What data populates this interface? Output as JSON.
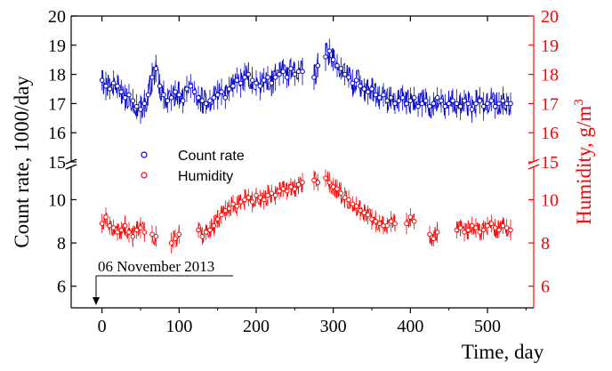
{
  "chart_data": {
    "type": "scatter",
    "x_axis": {
      "label": "Time, day",
      "range": [
        -40,
        560
      ],
      "ticks": [
        0,
        100,
        200,
        300,
        400,
        500
      ]
    },
    "y_left": {
      "label": "Count rate, 1000/day",
      "upper_segment": {
        "range": [
          15,
          20
        ],
        "ticks": [
          15,
          16,
          17,
          18,
          19,
          20
        ]
      },
      "lower_segment": {
        "range": [
          5,
          11.5
        ],
        "ticks": [
          6,
          8,
          10
        ]
      }
    },
    "y_right": {
      "label": "Humidity, g/m",
      "label_superscript": "3",
      "upper_segment": {
        "range": [
          15,
          20
        ],
        "ticks": [
          15,
          16,
          17,
          18,
          19,
          20
        ]
      },
      "lower_segment": {
        "range": [
          5,
          11.5
        ],
        "ticks": [
          6,
          8,
          10
        ]
      }
    },
    "legend": {
      "placement": "upper-left",
      "entries": [
        {
          "label": "Count rate",
          "color": "#0000cc"
        },
        {
          "label": "Humidity",
          "color": "#ff0000"
        }
      ]
    },
    "annotation": {
      "text": "06 November 2013",
      "x": 0
    },
    "series": [
      {
        "name": "Count rate",
        "color": "#0000cc",
        "axis_segment": "upper",
        "points": [
          [
            0,
            17.8
          ],
          [
            5,
            17.6
          ],
          [
            10,
            17.5
          ],
          [
            15,
            17.7
          ],
          [
            20,
            17.6
          ],
          [
            25,
            17.4
          ],
          [
            30,
            17.2
          ],
          [
            35,
            17.3
          ],
          [
            40,
            17.1
          ],
          [
            45,
            16.9
          ],
          [
            50,
            16.8
          ],
          [
            55,
            17.0
          ],
          [
            60,
            17.3
          ],
          [
            65,
            17.9
          ],
          [
            70,
            18.2
          ],
          [
            75,
            17.6
          ],
          [
            80,
            17.3
          ],
          [
            85,
            17.1
          ],
          [
            90,
            17.2
          ],
          [
            95,
            17.4
          ],
          [
            100,
            17.3
          ],
          [
            105,
            17.1
          ],
          [
            110,
            17.5
          ],
          [
            115,
            17.6
          ],
          [
            120,
            17.4
          ],
          [
            125,
            17.2
          ],
          [
            130,
            17.1
          ],
          [
            135,
            17.0
          ],
          [
            140,
            17.1
          ],
          [
            145,
            17.2
          ],
          [
            150,
            17.3
          ],
          [
            155,
            17.4
          ],
          [
            160,
            17.2
          ],
          [
            165,
            17.5
          ],
          [
            170,
            17.6
          ],
          [
            175,
            17.8
          ],
          [
            180,
            17.7
          ],
          [
            185,
            17.9
          ],
          [
            190,
            18.0
          ],
          [
            195,
            17.8
          ],
          [
            200,
            17.7
          ],
          [
            205,
            17.6
          ],
          [
            210,
            17.8
          ],
          [
            215,
            17.9
          ],
          [
            220,
            17.7
          ],
          [
            225,
            17.9
          ],
          [
            230,
            18.0
          ],
          [
            235,
            18.1
          ],
          [
            240,
            17.9
          ],
          [
            245,
            18.2
          ],
          [
            250,
            18.0
          ],
          [
            255,
            18.1
          ],
          [
            260,
            18.1
          ],
          [
            275,
            17.9
          ],
          [
            280,
            18.3
          ],
          [
            290,
            18.6
          ],
          [
            295,
            18.8
          ],
          [
            300,
            18.5
          ],
          [
            305,
            18.3
          ],
          [
            310,
            18.2
          ],
          [
            315,
            18.0
          ],
          [
            320,
            17.9
          ],
          [
            325,
            17.7
          ],
          [
            330,
            17.8
          ],
          [
            335,
            17.6
          ],
          [
            340,
            17.5
          ],
          [
            345,
            17.4
          ],
          [
            350,
            17.5
          ],
          [
            355,
            17.3
          ],
          [
            360,
            17.2
          ],
          [
            365,
            17.3
          ],
          [
            370,
            17.1
          ],
          [
            375,
            17.2
          ],
          [
            380,
            17.0
          ],
          [
            385,
            17.1
          ],
          [
            390,
            17.2
          ],
          [
            395,
            17.0
          ],
          [
            400,
            17.1
          ],
          [
            405,
            17.2
          ],
          [
            410,
            16.9
          ],
          [
            415,
            17.0
          ],
          [
            420,
            17.1
          ],
          [
            425,
            16.9
          ],
          [
            430,
            17.0
          ],
          [
            435,
            17.2
          ],
          [
            440,
            17.1
          ],
          [
            445,
            16.9
          ],
          [
            450,
            17.0
          ],
          [
            455,
            17.1
          ],
          [
            460,
            17.0
          ],
          [
            465,
            16.9
          ],
          [
            470,
            17.1
          ],
          [
            475,
            17.0
          ],
          [
            480,
            16.8
          ],
          [
            485,
            17.0
          ],
          [
            490,
            17.1
          ],
          [
            495,
            16.9
          ],
          [
            500,
            17.0
          ],
          [
            505,
            17.1
          ],
          [
            510,
            16.9
          ],
          [
            515,
            17.0
          ],
          [
            520,
            17.1
          ],
          [
            525,
            17.0
          ],
          [
            530,
            17.0
          ]
        ]
      },
      {
        "name": "Humidity",
        "color": "#ff0000",
        "axis_segment": "lower",
        "points": [
          [
            0,
            8.9
          ],
          [
            5,
            9.2
          ],
          [
            10,
            8.8
          ],
          [
            15,
            8.7
          ],
          [
            20,
            8.5
          ],
          [
            25,
            8.6
          ],
          [
            30,
            8.8
          ],
          [
            35,
            8.5
          ],
          [
            40,
            8.3
          ],
          [
            45,
            8.6
          ],
          [
            50,
            8.7
          ],
          [
            55,
            8.5
          ],
          [
            65,
            8.4
          ],
          [
            70,
            8.3
          ],
          [
            90,
            8.0
          ],
          [
            95,
            8.2
          ],
          [
            100,
            8.4
          ],
          [
            125,
            8.6
          ],
          [
            130,
            8.3
          ],
          [
            135,
            8.5
          ],
          [
            140,
            8.6
          ],
          [
            145,
            8.8
          ],
          [
            150,
            9.1
          ],
          [
            155,
            9.3
          ],
          [
            160,
            9.5
          ],
          [
            165,
            9.6
          ],
          [
            170,
            9.8
          ],
          [
            175,
            9.7
          ],
          [
            180,
            9.9
          ],
          [
            185,
            10.0
          ],
          [
            190,
            10.1
          ],
          [
            195,
            9.9
          ],
          [
            200,
            10.2
          ],
          [
            205,
            10.1
          ],
          [
            210,
            10.0
          ],
          [
            215,
            10.2
          ],
          [
            220,
            10.3
          ],
          [
            225,
            10.2
          ],
          [
            230,
            10.4
          ],
          [
            235,
            10.5
          ],
          [
            240,
            10.4
          ],
          [
            245,
            10.6
          ],
          [
            250,
            10.5
          ],
          [
            255,
            10.7
          ],
          [
            260,
            10.8
          ],
          [
            275,
            10.9
          ],
          [
            280,
            10.8
          ],
          [
            290,
            11.0
          ],
          [
            295,
            10.8
          ],
          [
            300,
            10.6
          ],
          [
            305,
            10.5
          ],
          [
            310,
            10.3
          ],
          [
            315,
            10.1
          ],
          [
            320,
            10.0
          ],
          [
            325,
            9.8
          ],
          [
            330,
            9.7
          ],
          [
            335,
            9.5
          ],
          [
            340,
            9.4
          ],
          [
            345,
            9.3
          ],
          [
            350,
            9.1
          ],
          [
            355,
            9.0
          ],
          [
            360,
            8.9
          ],
          [
            365,
            8.8
          ],
          [
            370,
            8.8
          ],
          [
            375,
            9.0
          ],
          [
            380,
            8.9
          ],
          [
            395,
            8.9
          ],
          [
            400,
            9.2
          ],
          [
            405,
            9.0
          ],
          [
            425,
            8.4
          ],
          [
            430,
            8.2
          ],
          [
            435,
            8.5
          ],
          [
            460,
            8.6
          ],
          [
            465,
            8.7
          ],
          [
            470,
            8.5
          ],
          [
            475,
            8.6
          ],
          [
            480,
            8.8
          ],
          [
            485,
            8.7
          ],
          [
            490,
            8.5
          ],
          [
            495,
            8.6
          ],
          [
            500,
            8.8
          ],
          [
            505,
            8.9
          ],
          [
            510,
            8.7
          ],
          [
            515,
            8.6
          ],
          [
            520,
            8.8
          ],
          [
            525,
            8.7
          ],
          [
            530,
            8.6
          ]
        ]
      }
    ]
  }
}
